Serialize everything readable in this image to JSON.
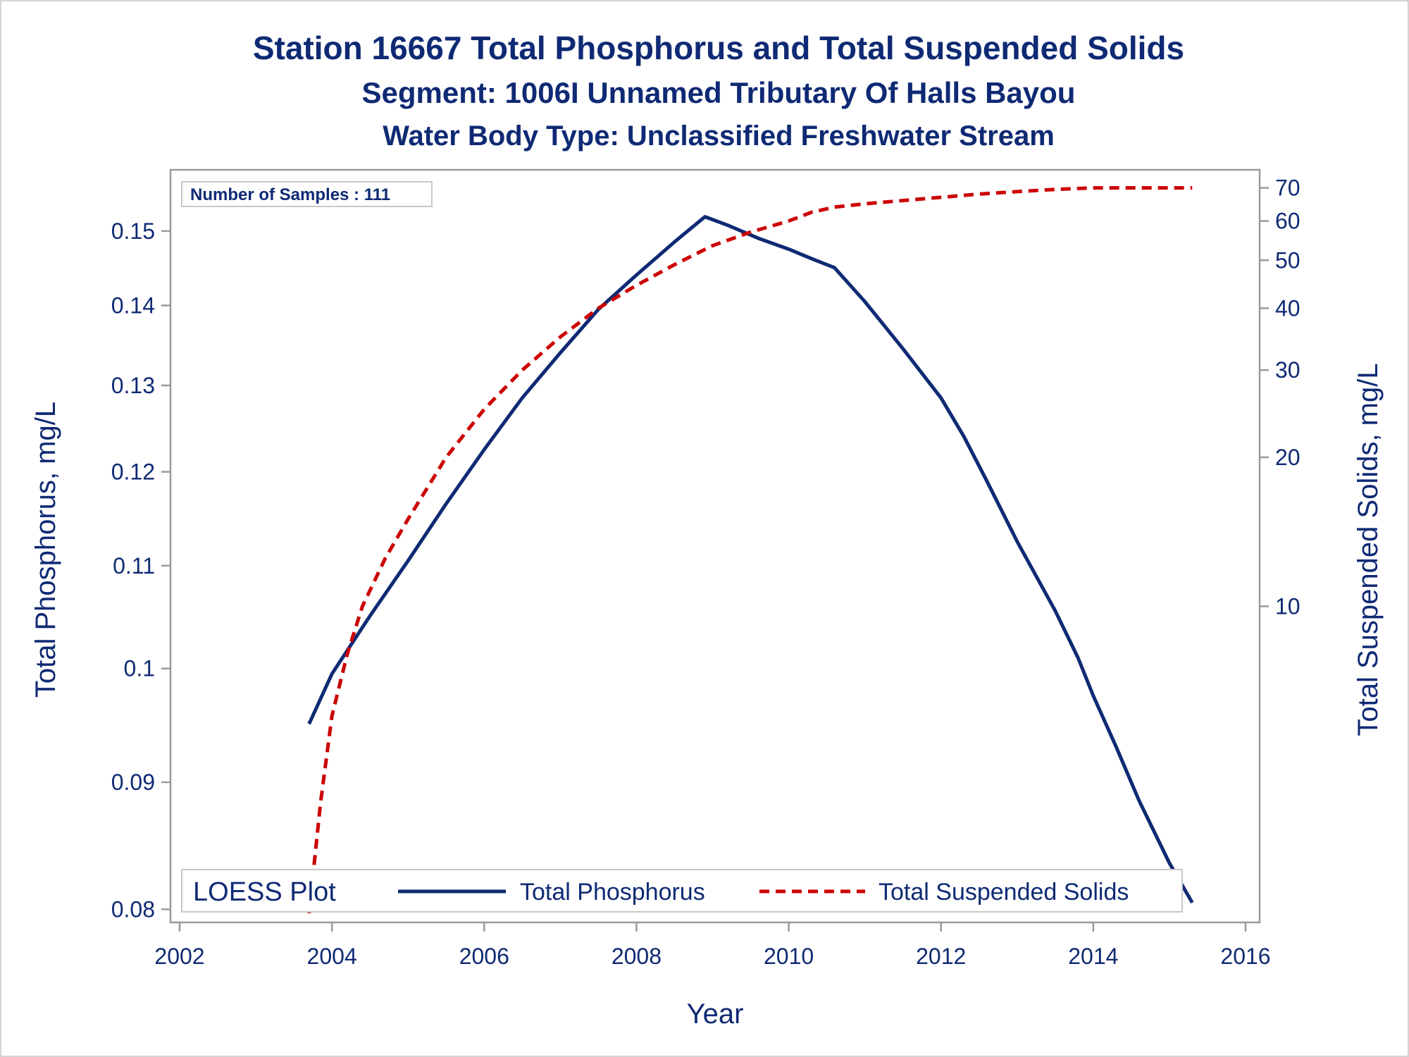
{
  "chart_data": {
    "type": "line",
    "title": "Station 16667  Total Phosphorus and Total Suspended Solids",
    "subtitle": "Segment: 1006I  Unnamed Tributary Of Halls Bayou",
    "subtitle2": "Water Body Type: Unclassified Freshwater Stream",
    "xlabel": "Year",
    "ylabel_left": "Total Phosphorus, mg/L",
    "ylabel_right": "Total Suspended Solids, mg/L",
    "xlim": [
      2002,
      2016
    ],
    "x_ticks": [
      2002,
      2004,
      2006,
      2008,
      2010,
      2012,
      2014,
      2016
    ],
    "ylim_left": [
      0.0795,
      0.157
    ],
    "y_ticks_left": [
      0.08,
      0.09,
      0.1,
      0.11,
      0.12,
      0.13,
      0.14,
      0.15
    ],
    "y_tick_labels_left": [
      "0.08",
      "0.09",
      "0.1",
      "0.11",
      "0.12",
      "0.13",
      "0.14",
      "0.15"
    ],
    "y_scale_left": "log",
    "ylim_right": [
      2.3,
      72
    ],
    "y_ticks_right": [
      10,
      20,
      30,
      40,
      50,
      60,
      70
    ],
    "y_scale_right": "log",
    "grid": false,
    "annotation": "Number of Samples : 111",
    "legend_title": "LOESS Plot",
    "legend_position": "bottom",
    "series": [
      {
        "name": "Total Phosphorus",
        "axis": "left",
        "color": "#0f2a74",
        "dash": "solid",
        "x": [
          2003.7,
          2004.0,
          2004.5,
          2005.0,
          2005.5,
          2006.0,
          2006.5,
          2007.0,
          2007.5,
          2008.0,
          2008.5,
          2008.9,
          2009.2,
          2009.6,
          2010.0,
          2010.3,
          2010.6,
          2011.0,
          2011.5,
          2012.0,
          2012.3,
          2012.6,
          2013.0,
          2013.5,
          2013.8,
          2014.0,
          2014.3,
          2014.6,
          2015.0,
          2015.3
        ],
        "y": [
          0.095,
          0.0995,
          0.105,
          0.1105,
          0.1165,
          0.1225,
          0.1285,
          0.134,
          0.1395,
          0.144,
          0.1485,
          0.152,
          0.1508,
          0.149,
          0.1475,
          0.1462,
          0.145,
          0.1405,
          0.1345,
          0.1285,
          0.124,
          0.119,
          0.1125,
          0.1055,
          0.101,
          0.0975,
          0.093,
          0.0885,
          0.0835,
          0.0805
        ]
      },
      {
        "name": "Total Suspended Solids",
        "axis": "right",
        "color": "#cc0000",
        "dash": "dashed",
        "x": [
          2003.7,
          2003.85,
          2004.0,
          2004.2,
          2004.4,
          2004.7,
          2005.0,
          2005.5,
          2006.0,
          2006.5,
          2007.0,
          2007.5,
          2008.0,
          2008.5,
          2009.0,
          2009.5,
          2010.0,
          2010.3,
          2010.6,
          2011.0,
          2011.5,
          2012.0,
          2012.5,
          2013.0,
          2013.5,
          2014.0,
          2014.5,
          2015.0,
          2015.3
        ],
        "y": [
          2.4,
          4.0,
          6.0,
          8.0,
          10.0,
          12.5,
          15.0,
          20.0,
          25.0,
          30.0,
          35.0,
          40.0,
          44.5,
          49.0,
          53.5,
          57.0,
          60.0,
          62.5,
          64.0,
          65.0,
          66.0,
          67.0,
          68.0,
          68.8,
          69.5,
          70.0,
          70.0,
          70.0,
          70.0
        ]
      }
    ]
  }
}
